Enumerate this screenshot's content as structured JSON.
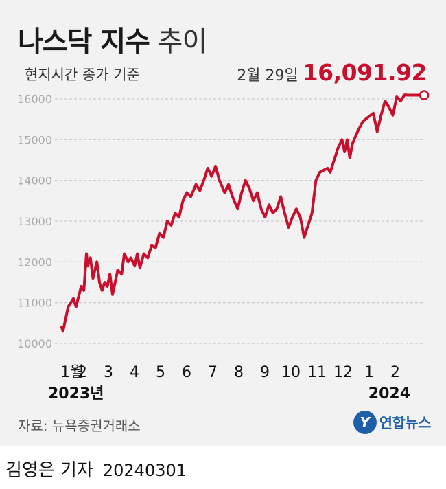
{
  "header": {
    "title_bold": "나스닥 지수",
    "title_light": "추이",
    "subtitle": "현지시간 종가 기준",
    "latest_date": "2월 29일",
    "latest_value": "16,091.92"
  },
  "footer": {
    "source": "자료: 뉴욕증권거래소",
    "logo_text": "연합뉴스",
    "reporter": "김영은 기자",
    "date": "20240301"
  },
  "colors": {
    "line": "#c8102e",
    "grid": "#cccccc",
    "background": "#f2f2f2",
    "logo": "#1f5fa8"
  },
  "chart_data": {
    "type": "line",
    "title": "나스닥 지수 추이",
    "ylim": [
      10000,
      16000
    ],
    "yticks": [
      10000,
      11000,
      12000,
      13000,
      14000,
      15000,
      16000
    ],
    "ytick_labels": [
      "10000",
      "11000",
      "12000",
      "13000",
      "14000",
      "15000",
      "16000"
    ],
    "xlim": [
      0,
      14
    ],
    "xticks": [
      0,
      1,
      2,
      3,
      4,
      5,
      6,
      7,
      8,
      9,
      10,
      11,
      12,
      13
    ],
    "xtick_labels": [
      "1월",
      "2",
      "3",
      "4",
      "5",
      "6",
      "7",
      "8",
      "9",
      "10",
      "11",
      "12",
      "1",
      "2"
    ],
    "year_labels": [
      "2023년",
      "2024"
    ],
    "grid": "horizontal",
    "series": [
      {
        "x": [
          0.05,
          0.1,
          0.3,
          0.5,
          0.6,
          0.8,
          0.9,
          1.0,
          1.05,
          1.15,
          1.25,
          1.4,
          1.5,
          1.6,
          1.7,
          1.8,
          1.9,
          2.0,
          2.1,
          2.2,
          2.35,
          2.45,
          2.6,
          2.7,
          2.85,
          2.95,
          3.05,
          3.2,
          3.35,
          3.5,
          3.65,
          3.8,
          3.95,
          4.1,
          4.25,
          4.4,
          4.55,
          4.7,
          4.85,
          5.0,
          5.2,
          5.35,
          5.5,
          5.65,
          5.8,
          5.95,
          6.1,
          6.3,
          6.45,
          6.6,
          6.8,
          6.95,
          7.1,
          7.25,
          7.4,
          7.55,
          7.7,
          7.85,
          8.0,
          8.15,
          8.3,
          8.45,
          8.6,
          8.75,
          8.9,
          9.05,
          9.2,
          9.35,
          9.5,
          9.65,
          9.8,
          9.95,
          10.1,
          10.25,
          10.35,
          10.5,
          10.65,
          10.8,
          10.9,
          11.0,
          11.1,
          11.2,
          11.4,
          11.6,
          11.8,
          12.0,
          12.15,
          12.3,
          12.45,
          12.6,
          12.75,
          12.9,
          13.05,
          13.2,
          13.35,
          13.45,
          13.55,
          13.65,
          13.75,
          13.85,
          13.95
        ],
        "y": [
          10400,
          10300,
          10900,
          11100,
          10900,
          11400,
          11300,
          12200,
          11900,
          12100,
          11600,
          12000,
          11500,
          11300,
          11500,
          11400,
          11700,
          11200,
          11500,
          11800,
          11700,
          12200,
          12000,
          12100,
          11900,
          12200,
          11850,
          12200,
          12100,
          12400,
          12350,
          12700,
          12600,
          13000,
          12900,
          13200,
          13100,
          13500,
          13700,
          13600,
          13900,
          13750,
          14000,
          14300,
          14100,
          14350,
          14000,
          13700,
          13900,
          13600,
          13300,
          13700,
          14000,
          13800,
          13500,
          13700,
          13300,
          13100,
          13400,
          13200,
          13300,
          13600,
          13200,
          12850,
          13100,
          13300,
          13100,
          12600,
          12900,
          13200,
          14000,
          14200,
          14250,
          14300,
          14200,
          14500,
          14800,
          15000,
          14700,
          15000,
          14550,
          14900,
          15200,
          15450,
          15550,
          15650,
          15200,
          15600,
          15950,
          15800,
          15600,
          16050,
          15950,
          16100,
          16092,
          16092,
          16092,
          16092,
          16092,
          16092,
          16091.92
        ]
      }
    ],
    "annotation": {
      "label": "2월 29일",
      "value": 16091.92
    }
  }
}
